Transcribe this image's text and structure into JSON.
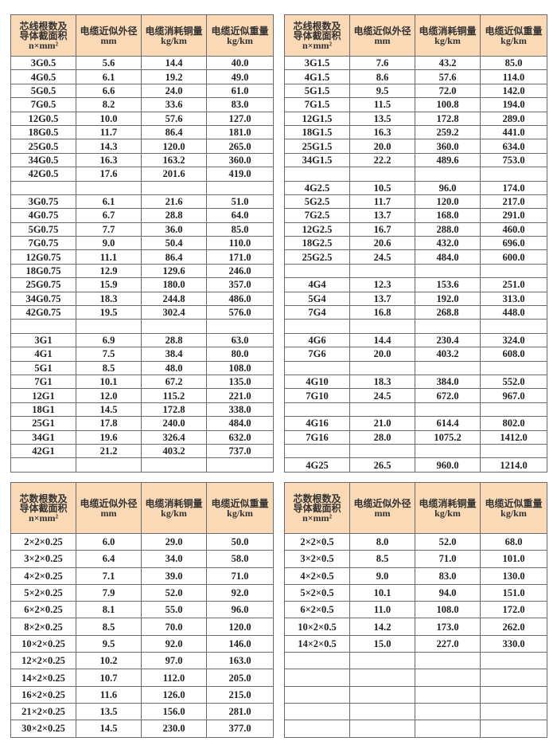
{
  "colors": {
    "header_bg": "#f9d9b6",
    "border": "#6a6a6a"
  },
  "tables": [
    {
      "headers": [
        [
          "芯线根数及",
          "导体截面积",
          "n×mm²"
        ],
        [
          "电缆近似外径",
          "mm"
        ],
        [
          "电缆消耗铜量",
          "kg/km"
        ],
        [
          "电缆近似重量",
          "kg/km"
        ]
      ],
      "rows": [
        [
          "3G0.5",
          "5.6",
          "14.4",
          "40.0"
        ],
        [
          "4G0.5",
          "6.1",
          "19.2",
          "49.0"
        ],
        [
          "5G0.5",
          "6.6",
          "24.0",
          "61.0"
        ],
        [
          "7G0.5",
          "8.2",
          "33.6",
          "83.0"
        ],
        [
          "12G0.5",
          "10.0",
          "57.6",
          "127.0"
        ],
        [
          "18G0.5",
          "11.7",
          "86.4",
          "181.0"
        ],
        [
          "25G0.5",
          "14.3",
          "120.0",
          "265.0"
        ],
        [
          "34G0.5",
          "16.3",
          "163.2",
          "360.0"
        ],
        [
          "42G0.5",
          "17.6",
          "201.6",
          "419.0"
        ],
        [
          "",
          "",
          "",
          ""
        ],
        [
          "3G0.75",
          "6.1",
          "21.6",
          "51.0"
        ],
        [
          "4G0.75",
          "6.7",
          "28.8",
          "64.0"
        ],
        [
          "5G0.75",
          "7.7",
          "36.0",
          "85.0"
        ],
        [
          "7G0.75",
          "9.0",
          "50.4",
          "110.0"
        ],
        [
          "12G0.75",
          "11.1",
          "86.4",
          "171.0"
        ],
        [
          "18G0.75",
          "12.9",
          "129.6",
          "246.0"
        ],
        [
          "25G0.75",
          "15.9",
          "180.0",
          "357.0"
        ],
        [
          "34G0.75",
          "18.3",
          "244.8",
          "486.0"
        ],
        [
          "42G0.75",
          "19.5",
          "302.4",
          "576.0"
        ],
        [
          "",
          "",
          "",
          ""
        ],
        [
          "3G1",
          "6.9",
          "28.8",
          "63.0"
        ],
        [
          "4G1",
          "7.5",
          "38.4",
          "80.0"
        ],
        [
          "5G1",
          "8.5",
          "48.0",
          "108.0"
        ],
        [
          "7G1",
          "10.1",
          "67.2",
          "135.0"
        ],
        [
          "12G1",
          "12.0",
          "115.2",
          "221.0"
        ],
        [
          "18G1",
          "14.5",
          "172.8",
          "338.0"
        ],
        [
          "25G1",
          "17.8",
          "240.0",
          "484.0"
        ],
        [
          "34G1",
          "19.6",
          "326.4",
          "632.0"
        ],
        [
          "42G1",
          "21.2",
          "403.2",
          "737.0"
        ],
        [
          "",
          "",
          "",
          ""
        ]
      ]
    },
    {
      "headers": [
        [
          "芯线根数及",
          "导体截面积",
          "n×mm²"
        ],
        [
          "电缆近似外径",
          "mm"
        ],
        [
          "电缆消耗铜量",
          "kg/km"
        ],
        [
          "电缆近似重量",
          "kg/km"
        ]
      ],
      "rows": [
        [
          "3G1.5",
          "7.6",
          "43.2",
          "85.0"
        ],
        [
          "4G1.5",
          "8.6",
          "57.6",
          "114.0"
        ],
        [
          "5G1.5",
          "9.5",
          "72.0",
          "142.0"
        ],
        [
          "7G1.5",
          "11.5",
          "100.8",
          "194.0"
        ],
        [
          "12G1.5",
          "13.5",
          "172.8",
          "289.0"
        ],
        [
          "18G1.5",
          "16.3",
          "259.2",
          "441.0"
        ],
        [
          "25G1.5",
          "20.0",
          "360.0",
          "634.0"
        ],
        [
          "34G1.5",
          "22.2",
          "489.6",
          "753.0"
        ],
        [
          "",
          "",
          "",
          ""
        ],
        [
          "4G2.5",
          "10.5",
          "96.0",
          "174.0"
        ],
        [
          "5G2.5",
          "11.7",
          "120.0",
          "217.0"
        ],
        [
          "7G2.5",
          "13.7",
          "168.0",
          "291.0"
        ],
        [
          "12G2.5",
          "16.7",
          "288.0",
          "460.0"
        ],
        [
          "18G2.5",
          "20.6",
          "432.0",
          "696.0"
        ],
        [
          "25G2.5",
          "24.5",
          "484.0",
          "600.0"
        ],
        [
          "",
          "",
          "",
          ""
        ],
        [
          "4G4",
          "12.3",
          "153.6",
          "251.0"
        ],
        [
          "5G4",
          "13.7",
          "192.0",
          "313.0"
        ],
        [
          "7G4",
          "16.8",
          "268.8",
          "448.0"
        ],
        [
          "",
          "",
          "",
          ""
        ],
        [
          "4G6",
          "14.4",
          "230.4",
          "324.0"
        ],
        [
          "7G6",
          "20.0",
          "403.2",
          "608.0"
        ],
        [
          "",
          "",
          "",
          ""
        ],
        [
          "4G10",
          "18.3",
          "384.0",
          "552.0"
        ],
        [
          "7G10",
          "24.5",
          "672.0",
          "967.0"
        ],
        [
          "",
          "",
          "",
          ""
        ],
        [
          "4G16",
          "21.0",
          "614.4",
          "802.0"
        ],
        [
          "7G16",
          "28.0",
          "1075.2",
          "1412.0"
        ],
        [
          "",
          "",
          "",
          ""
        ],
        [
          "4G25",
          "26.5",
          "960.0",
          "1214.0"
        ]
      ]
    },
    {
      "headers": [
        [
          "芯数根数及",
          "导体截面积",
          "n×mm²"
        ],
        [
          "电缆近似外径",
          "mm"
        ],
        [
          "电缆消耗铜量",
          "kg/km"
        ],
        [
          "电缆近似重量",
          "kg/km"
        ]
      ],
      "rows": [
        [
          "2×2×0.25",
          "6.0",
          "29.0",
          "50.0"
        ],
        [
          "3×2×0.25",
          "6.4",
          "34.0",
          "58.0"
        ],
        [
          "4×2×0.25",
          "7.1",
          "39.0",
          "71.0"
        ],
        [
          "5×2×0.25",
          "7.9",
          "52.0",
          "92.0"
        ],
        [
          "6×2×0.25",
          "8.1",
          "55.0",
          "96.0"
        ],
        [
          "8×2×0.25",
          "8.5",
          "70.0",
          "120.0"
        ],
        [
          "10×2×0.25",
          "9.5",
          "92.0",
          "146.0"
        ],
        [
          "12×2×0.25",
          "10.2",
          "97.0",
          "163.0"
        ],
        [
          "14×2×0.25",
          "10.7",
          "112.0",
          "205.0"
        ],
        [
          "16×2×0.25",
          "11.6",
          "126.0",
          "215.0"
        ],
        [
          "21×2×0.25",
          "13.5",
          "156.0",
          "281.0"
        ],
        [
          "30×2×0.25",
          "14.5",
          "230.0",
          "377.0"
        ]
      ]
    },
    {
      "headers": [
        [
          "芯数根数及",
          "导体截面积",
          "n×mm²"
        ],
        [
          "电缆近似外径",
          "mm"
        ],
        [
          "电缆消耗铜量",
          "kg/km"
        ],
        [
          "电缆近似重量",
          "kg/km"
        ]
      ],
      "rows": [
        [
          "2×2×0.5",
          "8.0",
          "52.0",
          "68.0"
        ],
        [
          "3×2×0.5",
          "8.5",
          "71.0",
          "101.0"
        ],
        [
          "4×2×0.5",
          "9.0",
          "83.0",
          "130.0"
        ],
        [
          "5×2×0.5",
          "10.1",
          "94.0",
          "151.0"
        ],
        [
          "6×2×0.5",
          "11.0",
          "108.0",
          "172.0"
        ],
        [
          "10×2×0.5",
          "14.2",
          "173.0",
          "262.0"
        ],
        [
          "14×2×0.5",
          "15.0",
          "227.0",
          "330.0"
        ],
        [
          "",
          "",
          "",
          ""
        ],
        [
          "",
          "",
          "",
          ""
        ],
        [
          "",
          "",
          "",
          ""
        ],
        [
          "",
          "",
          "",
          ""
        ],
        [
          "",
          "",
          "",
          ""
        ]
      ]
    }
  ]
}
